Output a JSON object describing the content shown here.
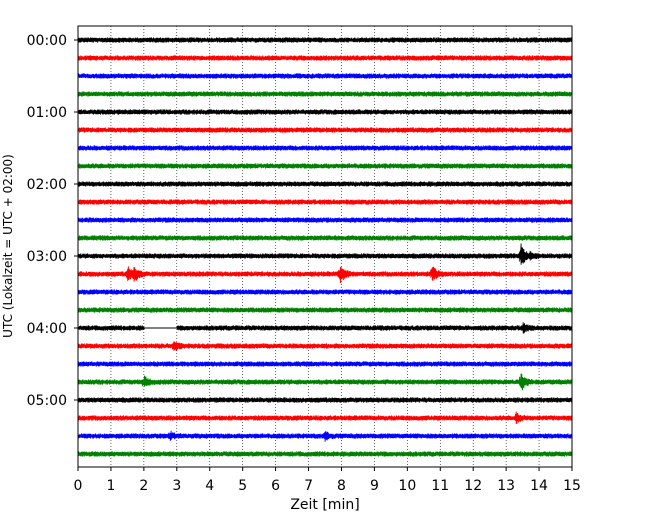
{
  "chart_data": {
    "type": "line",
    "title": "",
    "xlabel": "Zeit  [min]",
    "ylabel": "UTC (Lokalzeit = UTC + 02:00)",
    "xlim": [
      0,
      15
    ],
    "x_ticks": [
      "0",
      "1",
      "2",
      "3",
      "4",
      "5",
      "6",
      "7",
      "8",
      "9",
      "10",
      "11",
      "12",
      "13",
      "14",
      "15"
    ],
    "y_tick_labels": [
      "00:00",
      "01:00",
      "02:00",
      "03:00",
      "04:00",
      "05:00"
    ],
    "grid": "vertical dotted",
    "color_cycle": [
      "#000000",
      "#ff0000",
      "#0000ff",
      "#008000"
    ],
    "trace_count": 24,
    "trace_interval_min": 15,
    "events": [
      {
        "trace": 12,
        "x": 13.45,
        "amplitude": 1.0
      },
      {
        "trace": 12,
        "x": 13.7,
        "amplitude": 0.3
      },
      {
        "trace": 13,
        "x": 1.5,
        "amplitude": 0.6
      },
      {
        "trace": 13,
        "x": 1.7,
        "amplitude": 0.7
      },
      {
        "trace": 13,
        "x": 7.95,
        "amplitude": 0.9
      },
      {
        "trace": 13,
        "x": 10.75,
        "amplitude": 0.7
      },
      {
        "trace": 16,
        "x": 13.5,
        "amplitude": 0.4
      },
      {
        "trace": 17,
        "x": 2.9,
        "amplitude": 0.4
      },
      {
        "trace": 19,
        "x": 2.0,
        "amplitude": 0.5
      },
      {
        "trace": 19,
        "x": 13.45,
        "amplitude": 0.8
      },
      {
        "trace": 21,
        "x": 13.3,
        "amplitude": 0.4
      },
      {
        "trace": 22,
        "x": 2.8,
        "amplitude": 0.3
      },
      {
        "trace": 22,
        "x": 7.5,
        "amplitude": 0.3
      }
    ],
    "gaps": [
      {
        "trace": 16,
        "x_start": 2.0,
        "x_end": 3.0
      }
    ]
  }
}
